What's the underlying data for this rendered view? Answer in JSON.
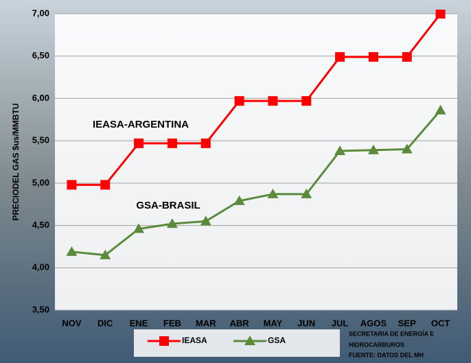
{
  "chart_data": {
    "type": "line",
    "y_label": "PRECIODEL GAS $us/MMBTU",
    "categories": [
      "NOV",
      "DIC",
      "ENE",
      "FEB",
      "MAR",
      "ABR",
      "MAY",
      "JUN",
      "JUL",
      "AGOS",
      "SEP",
      "OCT"
    ],
    "series": [
      {
        "name": "IEASA",
        "color": "#ff0000",
        "marker": "square",
        "values": [
          4.98,
          4.98,
          5.47,
          5.47,
          5.47,
          5.97,
          5.97,
          5.97,
          6.49,
          6.49,
          6.49,
          7.0
        ]
      },
      {
        "name": "GSA",
        "color": "#5a8a3a",
        "marker": "triangle",
        "values": [
          4.19,
          4.15,
          4.46,
          4.52,
          4.55,
          4.79,
          4.87,
          4.87,
          5.38,
          5.39,
          5.4,
          5.86
        ]
      }
    ],
    "ylim": [
      3.5,
      7.0
    ],
    "yticks": [
      {
        "value": 3.5,
        "label": "3,50"
      },
      {
        "value": 4.0,
        "label": "4,00"
      },
      {
        "value": 4.5,
        "label": "4,50"
      },
      {
        "value": 5.0,
        "label": "5,00"
      },
      {
        "value": 5.5,
        "label": "5,50"
      },
      {
        "value": 6.0,
        "label": "6,00"
      },
      {
        "value": 6.5,
        "label": "6,50"
      },
      {
        "value": 7.0,
        "label": "7,00"
      }
    ],
    "grid": true,
    "legend": "bottom",
    "annotations": [
      "IEASA-ARGENTINA",
      "GSA-BRASIL"
    ],
    "source": [
      "SECRETARIA DE ENERGÍA E",
      "HIDROCARBUROS",
      "FUENTE: DATOS DEL MH"
    ]
  }
}
